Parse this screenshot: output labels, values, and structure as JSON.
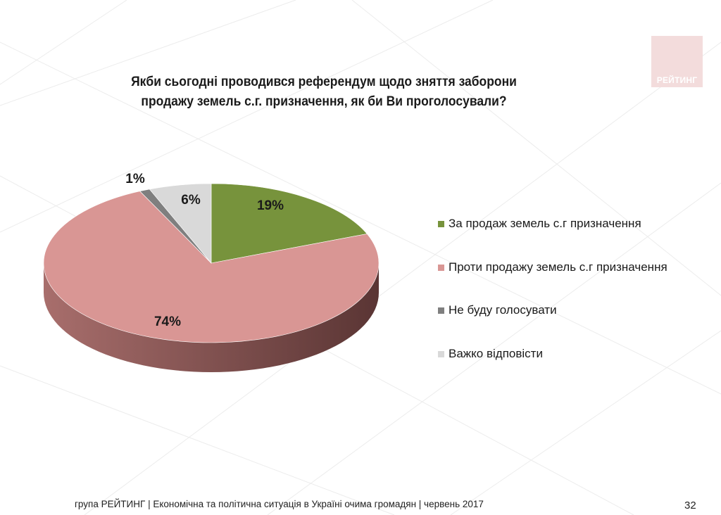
{
  "title_lines": [
    "Якби сьогодні проводився референдум щодо зняття заборони",
    "продажу земель с.г. призначення, як би Ви проголосували?"
  ],
  "logo": {
    "text": "РЕЙТИНГ"
  },
  "chart_data": {
    "type": "pie",
    "title": "Якби сьогодні проводився референдум щодо зняття заборони продажу земель с.г. призначення, як би Ви проголосували?",
    "labels": [
      "За продаж земель с.г призначення",
      "Проти продажу земель с.г призначення",
      "Не буду голосувати",
      "Важко відповісти"
    ],
    "values": [
      19,
      74,
      1,
      6
    ],
    "data_labels": [
      "19%",
      "74%",
      "1%",
      "6%"
    ],
    "colors": [
      "#77933c",
      "#d99694",
      "#7f7f7f",
      "#d9d9d9"
    ],
    "side_colors": [
      "#4f6228",
      "#a86e6c",
      "#595959",
      "#a6a6a6"
    ],
    "legend_position": "right",
    "style": "3d"
  },
  "footer": {
    "text": "група РЕЙТИНГ  |  Економічна та політична ситуація в Україні очима громадян  |  червень 2017",
    "page": "32"
  }
}
